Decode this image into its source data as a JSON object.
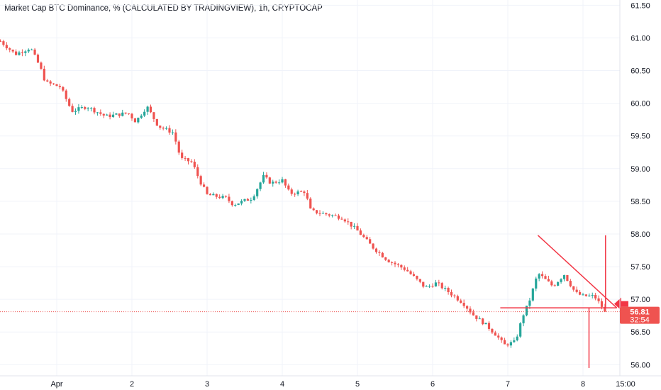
{
  "title": "Market Cap BTC Dominance, % (CALCULATED BY TRADINGVIEW), 1h, CRYPTOCAP",
  "colors": {
    "up": "#26a69a",
    "down": "#ef5350",
    "annotation": "#f23645",
    "grid": "#f0f3fa",
    "text": "#131722"
  },
  "current_price": {
    "value": "56.81",
    "countdown": "32:54"
  },
  "chart_data": {
    "type": "candlestick",
    "title": "Market Cap BTC Dominance, % (CALCULATED BY TRADINGVIEW), 1h, CRYPTOCAP",
    "ylim": [
      55.83,
      61.58
    ],
    "y_ticks": [
      "61.50",
      "61.00",
      "60.50",
      "60.00",
      "59.50",
      "59.00",
      "58.50",
      "58.00",
      "57.50",
      "57.00",
      "56.50",
      "56.00"
    ],
    "x_ticks": [
      "Apr",
      "2",
      "3",
      "4",
      "5",
      "6",
      "7",
      "8",
      "15:00"
    ],
    "x_range_days": [
      -0.75,
      2.6
    ],
    "anchors": [
      [
        -0.75,
        60.95
      ],
      [
        -0.55,
        60.75
      ],
      [
        -0.35,
        60.85
      ],
      [
        -0.22,
        60.55
      ],
      [
        -0.15,
        60.32
      ],
      [
        0.05,
        60.25
      ],
      [
        0.2,
        59.88
      ],
      [
        0.4,
        59.95
      ],
      [
        0.65,
        59.8
      ],
      [
        0.95,
        59.85
      ],
      [
        1.05,
        59.72
      ],
      [
        1.2,
        59.95
      ],
      [
        1.35,
        59.65
      ],
      [
        1.55,
        59.55
      ],
      [
        1.65,
        59.15
      ],
      [
        1.8,
        59.1
      ],
      [
        1.9,
        58.82
      ],
      [
        2.0,
        58.6
      ],
      [
        2.25,
        58.55
      ],
      [
        2.35,
        58.45
      ],
      [
        2.6,
        58.55
      ],
      [
        2.75,
        58.88
      ],
      [
        2.85,
        58.78
      ],
      [
        3.0,
        58.82
      ],
      [
        3.1,
        58.62
      ],
      [
        3.3,
        58.65
      ],
      [
        3.38,
        58.35
      ],
      [
        3.6,
        58.3
      ],
      [
        3.8,
        58.25
      ],
      [
        4.0,
        58.05
      ],
      [
        4.2,
        57.8
      ],
      [
        4.4,
        57.6
      ],
      [
        4.65,
        57.45
      ],
      [
        4.9,
        57.18
      ],
      [
        5.05,
        57.25
      ],
      [
        5.25,
        57.08
      ],
      [
        5.4,
        56.95
      ],
      [
        5.55,
        56.75
      ],
      [
        5.7,
        56.62
      ],
      [
        5.85,
        56.45
      ],
      [
        5.95,
        56.3
      ],
      [
        6.1,
        56.35
      ],
      [
        6.2,
        56.75
      ],
      [
        6.28,
        56.95
      ],
      [
        6.4,
        57.4
      ],
      [
        6.5,
        57.3
      ],
      [
        6.6,
        57.2
      ],
      [
        6.75,
        57.38
      ],
      [
        6.9,
        57.1
      ],
      [
        7.0,
        57.05
      ],
      [
        7.15,
        57.05
      ],
      [
        7.3,
        56.81
      ]
    ],
    "annotations": {
      "support_line": {
        "y": 56.87,
        "x_start_day": 5.9,
        "x_end_day": 7.45
      },
      "resistance_line": {
        "start": [
          6.4,
          57.98
        ],
        "end": [
          7.45,
          56.87
        ]
      },
      "vertical_up": {
        "x_day": 7.3,
        "y_top": 57.98,
        "y_bottom": 56.87
      },
      "vertical_down": {
        "x_day": 7.08,
        "y_top": 56.87,
        "y_bottom": 55.95
      },
      "arrow": {
        "y": 56.93,
        "direction": "left"
      }
    }
  }
}
